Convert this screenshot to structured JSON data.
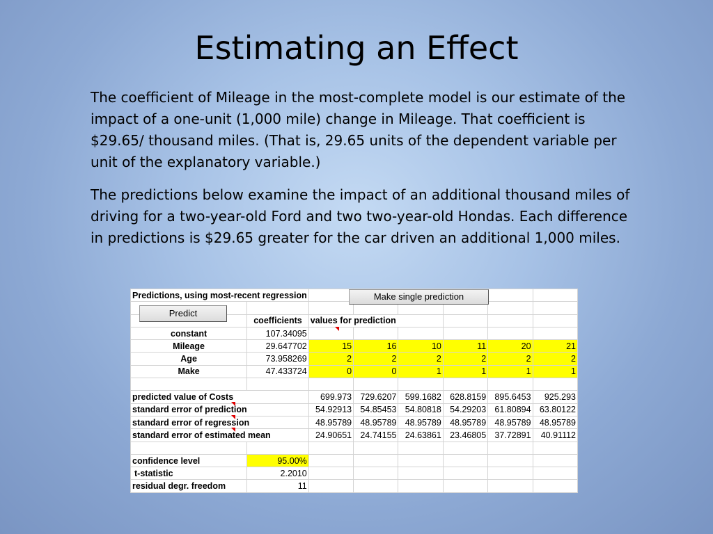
{
  "title": "Estimating an Effect",
  "paragraphs": [
    "The coefficient of Mileage in the most-complete model is our estimate of the impact of a one-unit (1,000 mile) change in Mileage. That coefficient is $29.65/ thousand miles. (That is, 29.65 units of the dependent variable per unit of the explanatory variable.)",
    "The predictions below examine the impact of an additional thousand miles of driving for a two-year-old Ford and two two-year-old Hondas. Each difference in predictions is $29.65 greater for the car driven an additional 1,000 miles."
  ],
  "sheet": {
    "header": "Predictions, using most-recent regression",
    "make_single_prediction_label": "Make single prediction",
    "predict_label": "Predict",
    "coefficients_header": "coefficients",
    "values_header": "values for prediction",
    "variables": [
      {
        "name": "constant",
        "coef": "107.34095",
        "values": [
          "",
          "",
          "",
          "",
          "",
          ""
        ]
      },
      {
        "name": "Mileage",
        "coef": "29.647702",
        "values": [
          "15",
          "16",
          "10",
          "11",
          "20",
          "21"
        ]
      },
      {
        "name": "Age",
        "coef": "73.958269",
        "values": [
          "2",
          "2",
          "2",
          "2",
          "2",
          "2"
        ]
      },
      {
        "name": "Make",
        "coef": "47.433724",
        "values": [
          "0",
          "0",
          "1",
          "1",
          "1",
          "1"
        ]
      }
    ],
    "results": [
      {
        "label": "predicted value of Costs",
        "values": [
          "699.973",
          "729.6207",
          "599.1682",
          "628.8159",
          "895.6453",
          "925.293"
        ]
      },
      {
        "label": "standard error of prediction",
        "values": [
          "54.92913",
          "54.85453",
          "54.80818",
          "54.29203",
          "61.80894",
          "63.80122"
        ]
      },
      {
        "label": "standard error of regression",
        "values": [
          "48.95789",
          "48.95789",
          "48.95789",
          "48.95789",
          "48.95789",
          "48.95789"
        ]
      },
      {
        "label": "standard error of estimated mean",
        "values": [
          "24.90651",
          "24.74155",
          "24.63861",
          "23.46805",
          "37.72891",
          "40.91112"
        ]
      }
    ],
    "confidence_label": "confidence level",
    "confidence_value": "95.00%",
    "tstat_label": "t-statistic",
    "tstat_value": "2.2010",
    "dof_label": "residual degr. freedom",
    "dof_value": "11"
  }
}
